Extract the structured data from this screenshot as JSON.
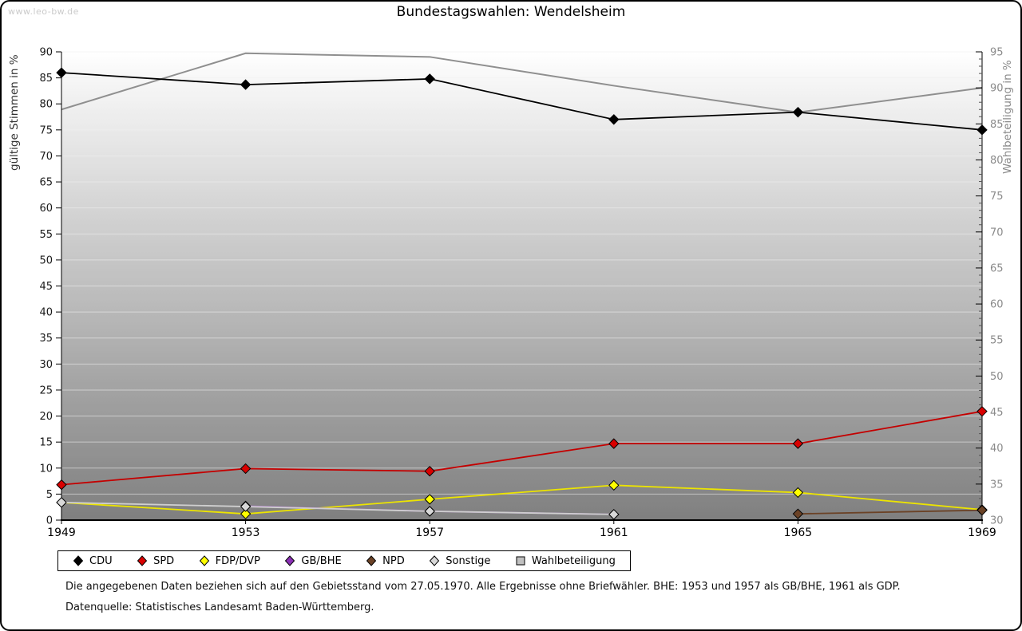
{
  "watermark": "www.leo-bw.de",
  "title": "Bundestagswahlen: Wendelsheim",
  "footnotes": [
    "Die angegebenen Daten beziehen sich auf den Gebietsstand vom 27.05.1970. Alle Ergebnisse ohne Briefwähler. BHE: 1953 und 1957 als GB/BHE, 1961 als GDP.",
    "Datenquelle: Statistisches Landesamt Baden-Württemberg."
  ],
  "chart_data": {
    "type": "line",
    "title": "Bundestagswahlen: Wendelsheim",
    "x": [
      1949,
      1953,
      1957,
      1961,
      1965,
      1969
    ],
    "x_tick_labels": [
      "1949",
      "1953",
      "1957",
      "1961",
      "1965",
      "1969"
    ],
    "grid": true,
    "legend_position": "bottom",
    "plot_bg_top": "#ffffff",
    "plot_bg_bottom": "#6b6b6b",
    "gridline_color": "#efefef",
    "left_axis": {
      "label": "gültige Stimmen in %",
      "min": 0,
      "max": 90,
      "tick_step": 5,
      "ticks": [
        0,
        5,
        10,
        15,
        20,
        25,
        30,
        35,
        40,
        45,
        50,
        55,
        60,
        65,
        70,
        75,
        80,
        85,
        90
      ],
      "label_color": "#1a1a1a"
    },
    "right_axis": {
      "label": "Wahlbeteiligung in %",
      "min": 30,
      "max": 95,
      "tick_step": 5,
      "minor_tick_step": 1,
      "ticks": [
        30,
        35,
        40,
        45,
        50,
        55,
        60,
        65,
        70,
        75,
        80,
        85,
        90,
        95
      ],
      "label_color": "#8a8a8a"
    },
    "series": [
      {
        "name": "CDU",
        "axis": "left",
        "type": "line",
        "marker": "diamond",
        "color": "#000000",
        "marker_fill": "#000000",
        "values": [
          86,
          83.7,
          84.8,
          77,
          78.4,
          75
        ]
      },
      {
        "name": "SPD",
        "axis": "left",
        "type": "line",
        "marker": "diamond",
        "color": "#c40000",
        "marker_fill": "#d90000",
        "values": [
          6.8,
          9.9,
          9.4,
          14.7,
          14.7,
          20.9
        ]
      },
      {
        "name": "FDP/DVP",
        "axis": "left",
        "type": "line",
        "marker": "diamond",
        "color": "#ece400",
        "marker_fill": "#ffff00",
        "values": [
          3.4,
          1.2,
          4.0,
          6.7,
          5.3,
          2.0
        ]
      },
      {
        "name": "GB/BHE",
        "axis": "left",
        "type": "line",
        "marker": "diamond",
        "color": "#a86fc8",
        "marker_fill": "#8b30b5",
        "values": [
          null,
          2.7,
          1.7,
          1.1,
          null,
          null
        ]
      },
      {
        "name": "NPD",
        "axis": "left",
        "type": "line",
        "marker": "diamond",
        "color": "#6b4226",
        "marker_fill": "#6b4226",
        "values": [
          null,
          null,
          null,
          null,
          1.2,
          1.9
        ]
      },
      {
        "name": "Sonstige",
        "axis": "left",
        "type": "line",
        "marker": "diamond",
        "color": "#cfcfcf",
        "marker_fill": "#d8d8d8",
        "values": [
          3.4,
          2.6,
          1.7,
          1.1,
          null,
          null
        ]
      },
      {
        "name": "Wahlbeteiligung",
        "axis": "right",
        "type": "area",
        "marker": "square",
        "color": "#8f8f8f",
        "marker_fill": "#c0c0c0",
        "fill": "rgba(255,255,255,0.14)",
        "values": [
          87,
          94.8,
          94.3,
          90.3,
          86.6,
          90
        ]
      }
    ]
  }
}
